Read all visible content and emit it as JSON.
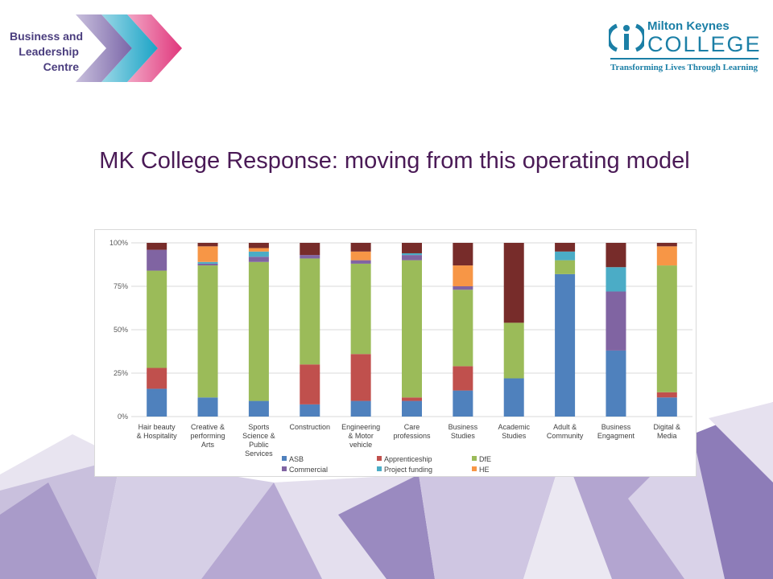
{
  "slide": {
    "title": "MK College Response: moving from this operating model"
  },
  "logos": {
    "left": {
      "lines": [
        "Business and",
        "Leadership",
        "Centre"
      ],
      "arrow_colors": [
        "#8a76b0",
        "#1aa3c6",
        "#e0377c"
      ],
      "text_color": "#4a3d7e"
    },
    "right": {
      "line1": "Milton Keynes",
      "line2": "COLLEGE",
      "tagline": "Transforming Lives Through Learning",
      "color": "#1b7fa6"
    }
  },
  "chart_data": {
    "type": "bar",
    "stacked": true,
    "percent": true,
    "categories": [
      "Hair beauty & Hospitality",
      "Creative & performing Arts",
      "Sports Science & Public Services",
      "Construction",
      "Engineering & Motor vehicle",
      "Care professions",
      "Business Studies",
      "Academic Studies",
      "Adult & Community",
      "Business Engagment",
      "Digital & Media"
    ],
    "category_label_lines": [
      [
        "Hair beauty",
        "& Hospitality"
      ],
      [
        "Creative &",
        "performing",
        "Arts"
      ],
      [
        "Sports",
        "Science &",
        "Public",
        "Services"
      ],
      [
        "Construction"
      ],
      [
        "Engineering",
        "& Motor",
        "vehicle"
      ],
      [
        "Care",
        "professions"
      ],
      [
        "Business",
        "Studies"
      ],
      [
        "Academic",
        "Studies"
      ],
      [
        "Adult &",
        "Community"
      ],
      [
        "Business",
        "Engagment"
      ],
      [
        "Digital &",
        "Media"
      ]
    ],
    "y_ticks": [
      "0%",
      "25%",
      "50%",
      "75%",
      "100%"
    ],
    "ylim": [
      0,
      100
    ],
    "grid": true,
    "legend_position": "bottom",
    "series": [
      {
        "name": "ASB",
        "color": "#4f81bd",
        "values": [
          16,
          11,
          9,
          7,
          9,
          9,
          15,
          22,
          82,
          38,
          11
        ]
      },
      {
        "name": "Apprenticeship",
        "color": "#c0504d",
        "values": [
          12,
          0,
          0,
          23,
          27,
          2,
          14,
          0,
          0,
          0,
          3
        ]
      },
      {
        "name": "DfE",
        "color": "#9bbb59",
        "values": [
          56,
          76,
          80,
          61,
          52,
          79,
          44,
          32,
          8,
          0,
          73
        ]
      },
      {
        "name": "Commercial",
        "color": "#8064a2",
        "values": [
          12,
          1,
          3,
          2,
          2,
          3,
          2,
          0,
          0,
          34,
          0
        ]
      },
      {
        "name": "Project funding",
        "color": "#4bacc6",
        "values": [
          0,
          1,
          3,
          0,
          0,
          1,
          0,
          0,
          5,
          14,
          0
        ]
      },
      {
        "name": "HE",
        "color": "#f79646",
        "values": [
          0,
          9,
          2,
          0,
          5,
          0,
          12,
          0,
          0,
          0,
          11
        ]
      },
      {
        "name": "",
        "color": "#772c2a",
        "values": [
          4,
          2,
          3,
          7,
          5,
          6,
          13,
          46,
          5,
          14,
          2
        ]
      }
    ]
  }
}
